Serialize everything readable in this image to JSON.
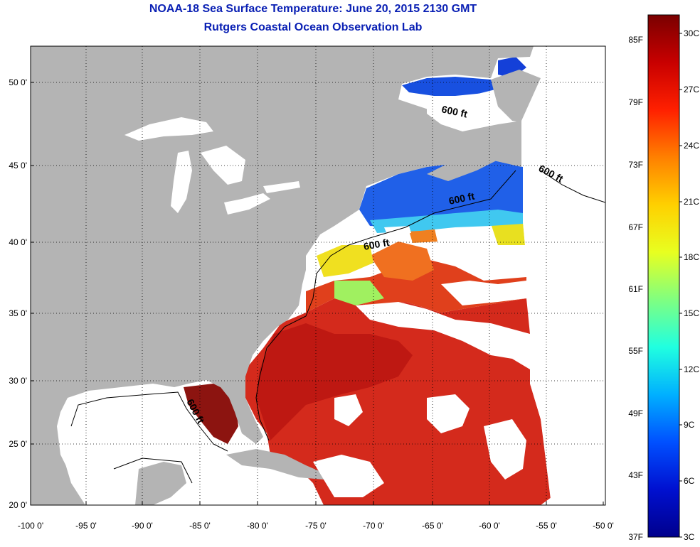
{
  "header": {
    "title_line1": "NOAA-18 Sea Surface Temperature:  June 20, 2015 2130 GMT",
    "title_line2": "Rutgers Coastal Ocean Observation Lab"
  },
  "map": {
    "lon_ticks": [
      "-100 0'",
      "-95 0'",
      "-90 0'",
      "-85 0'",
      "-80 0'",
      "-75 0'",
      "-70 0'",
      "-65 0'",
      "-60 0'",
      "-55 0'",
      "-50 0'"
    ],
    "lat_ticks": [
      "50 0'",
      "45 0'",
      "40 0'",
      "35 0'",
      "30 0'",
      "25 0'",
      "20 0'"
    ],
    "contour_labels": [
      "600 ft",
      "600 ft",
      "600 ft",
      "600 ft",
      "600 ft"
    ],
    "colors": {
      "land": "#b4b4b4",
      "cloud": "#ffffff",
      "warm": "#d8281c",
      "cold": "#1a5ee0"
    }
  },
  "colorbar": {
    "fahrenheit_labels": [
      "85F",
      "79F",
      "73F",
      "67F",
      "61F",
      "55F",
      "49F",
      "43F",
      "37F"
    ],
    "celsius_labels": [
      "30C",
      "27C",
      "24C",
      "21C",
      "18C",
      "15C",
      "12C",
      "9C",
      "6C",
      "3C"
    ],
    "gradient_stops": [
      "#7a0000",
      "#c80000",
      "#ff2000",
      "#ff8000",
      "#ffd000",
      "#e8ff20",
      "#80ff80",
      "#20ffe0",
      "#00b0ff",
      "#0050ff",
      "#0010d0",
      "#00008c"
    ]
  }
}
